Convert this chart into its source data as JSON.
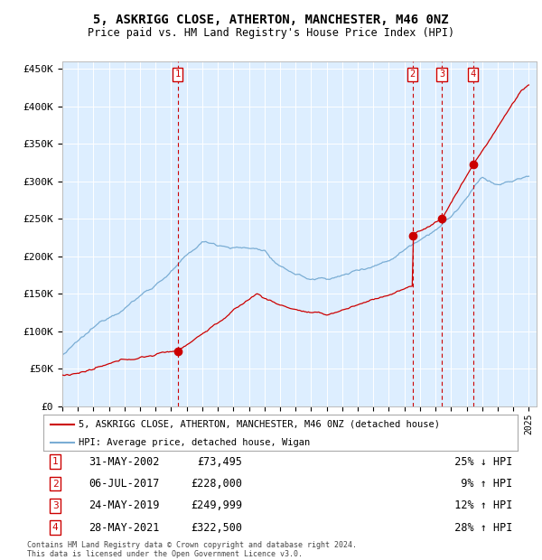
{
  "title": "5, ASKRIGG CLOSE, ATHERTON, MANCHESTER, M46 0NZ",
  "subtitle": "Price paid vs. HM Land Registry's House Price Index (HPI)",
  "ylim": [
    0,
    460000
  ],
  "yticks": [
    0,
    50000,
    100000,
    150000,
    200000,
    250000,
    300000,
    350000,
    400000,
    450000
  ],
  "ytick_labels": [
    "£0",
    "£50K",
    "£100K",
    "£150K",
    "£200K",
    "£250K",
    "£300K",
    "£350K",
    "£400K",
    "£450K"
  ],
  "background_color": "#ddeeff",
  "legend_label_red": "5, ASKRIGG CLOSE, ATHERTON, MANCHESTER, M46 0NZ (detached house)",
  "legend_label_blue": "HPI: Average price, detached house, Wigan",
  "transactions": [
    {
      "num": 1,
      "date": "31-MAY-2002",
      "date_x": 2002.42,
      "price": 73495,
      "pct": "25%",
      "dir": "↓"
    },
    {
      "num": 2,
      "date": "06-JUL-2017",
      "date_x": 2017.52,
      "price": 228000,
      "pct": "9%",
      "dir": "↑"
    },
    {
      "num": 3,
      "date": "24-MAY-2019",
      "date_x": 2019.4,
      "price": 249999,
      "pct": "12%",
      "dir": "↑"
    },
    {
      "num": 4,
      "date": "28-MAY-2021",
      "date_x": 2021.41,
      "price": 322500,
      "pct": "28%",
      "dir": "↑"
    }
  ],
  "footer_line1": "Contains HM Land Registry data © Crown copyright and database right 2024.",
  "footer_line2": "This data is licensed under the Open Government Licence v3.0.",
  "red_color": "#cc0000",
  "blue_color": "#7aadd4",
  "xlim_start": 1995.0,
  "xlim_end": 2025.5,
  "n_points": 365
}
